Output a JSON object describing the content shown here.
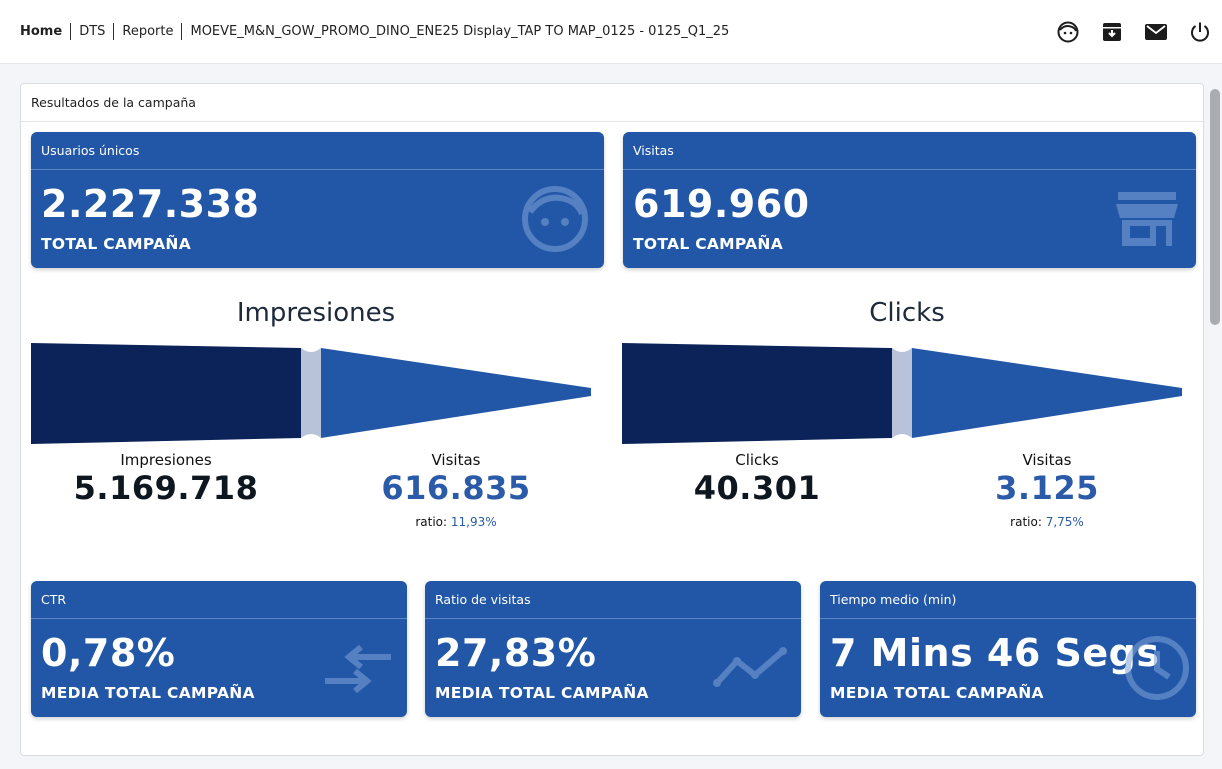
{
  "breadcrumb": {
    "home": "Home",
    "dts": "DTS",
    "reporte": "Reporte",
    "current": "MOEVE_M&N_GOW_PROMO_DINO_ENE25 Display_TAP TO MAP_0125 - 0125_Q1_25"
  },
  "header_icons": [
    "face-icon",
    "archive-icon",
    "mail-icon",
    "power-icon"
  ],
  "panel": {
    "title": "Resultados de la campaña"
  },
  "cards_top": [
    {
      "title": "Usuarios únicos",
      "value": "2.227.338",
      "sub": "TOTAL CAMPAÑA",
      "icon": "face-icon"
    },
    {
      "title": "Visitas",
      "value": "619.960",
      "sub": "TOTAL CAMPAÑA",
      "icon": "store-icon"
    }
  ],
  "funnels": [
    {
      "title": "Impresiones",
      "left_label": "Impresiones",
      "left_value": "5.169.718",
      "right_label": "Visitas",
      "right_value": "616.835",
      "ratio_label": "ratio:",
      "ratio_value": "11,93%"
    },
    {
      "title": "Clicks",
      "left_label": "Clicks",
      "left_value": "40.301",
      "right_label": "Visitas",
      "right_value": "3.125",
      "ratio_label": "ratio:",
      "ratio_value": "7,75%"
    }
  ],
  "cards_bottom": [
    {
      "title": "CTR",
      "value": "0,78%",
      "sub": "MEDIA TOTAL CAMPAÑA",
      "icon": "arrows-compare-icon"
    },
    {
      "title": "Ratio de visitas",
      "value": "27,83%",
      "sub": "MEDIA TOTAL CAMPAÑA",
      "icon": "trending-line-icon"
    },
    {
      "title": "Tiempo medio (min)",
      "value": "7 Mins 46 Segs",
      "sub": "MEDIA TOTAL CAMPAÑA",
      "icon": "clock-icon"
    }
  ],
  "colors": {
    "card_bg": "#2257a7",
    "funnel_dark": "#0b2358",
    "funnel_light": "#2257a7",
    "funnel_gap": "#b8c2d8",
    "accent_text": "#2a5aa8"
  }
}
